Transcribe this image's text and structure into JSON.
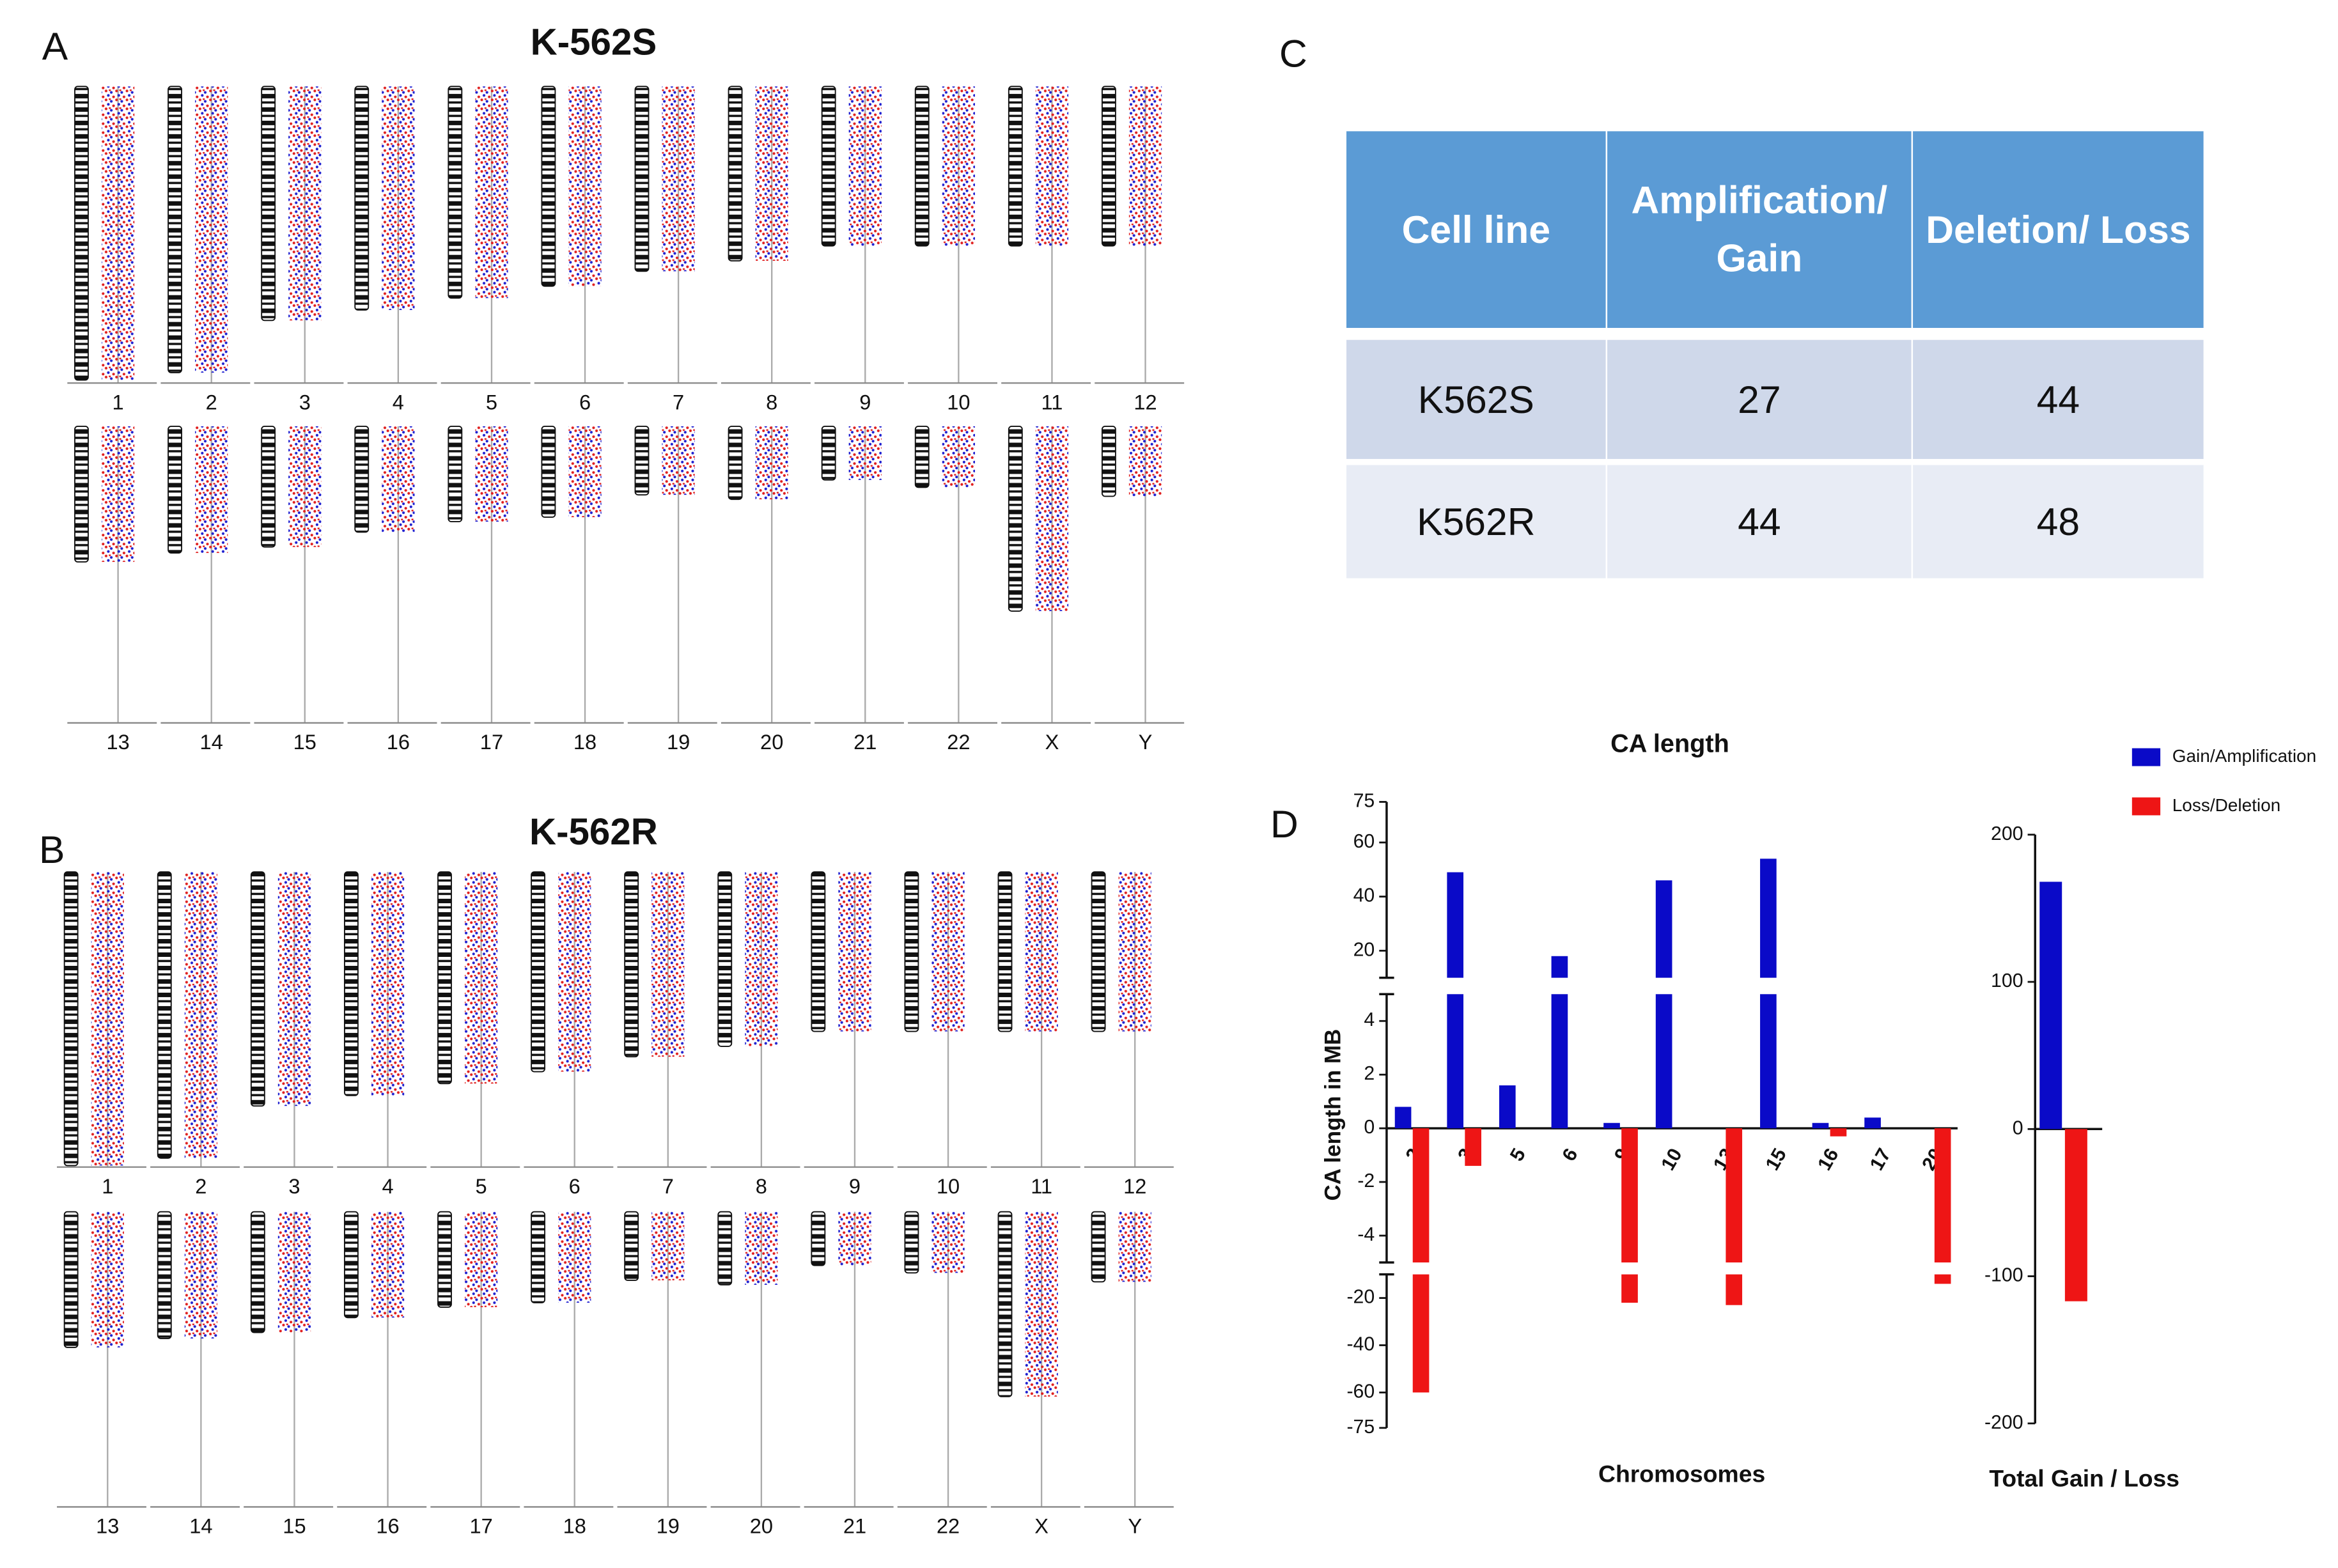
{
  "panel_letters": [
    "A",
    "B",
    "C",
    "D"
  ],
  "karyograms": [
    {
      "title": "K-562S",
      "rows": [
        [
          "1",
          "2",
          "3",
          "4",
          "5",
          "6",
          "7",
          "8",
          "9",
          "10",
          "11",
          "12"
        ],
        [
          "13",
          "14",
          "15",
          "16",
          "17",
          "18",
          "19",
          "20",
          "21",
          "22",
          "X",
          "Y"
        ]
      ]
    },
    {
      "title": "K-562R",
      "rows": [
        [
          "1",
          "2",
          "3",
          "4",
          "5",
          "6",
          "7",
          "8",
          "9",
          "10",
          "11",
          "12"
        ],
        [
          "13",
          "14",
          "15",
          "16",
          "17",
          "18",
          "19",
          "20",
          "21",
          "22",
          "X",
          "Y"
        ]
      ]
    }
  ],
  "table": {
    "header": [
      "Cell line",
      "Amplification/ Gain",
      "Deletion/ Loss"
    ],
    "rows": [
      [
        "K562S",
        27,
        44
      ],
      [
        "K562R",
        44,
        48
      ]
    ]
  },
  "chart_data": [
    {
      "type": "bar",
      "title": "CA length",
      "xlabel": "Chromosomes",
      "ylabel": "CA length in MB",
      "categories": [
        "2",
        "3",
        "5",
        "6",
        "9",
        "10",
        "13",
        "15",
        "16",
        "17",
        "20"
      ],
      "series": [
        {
          "name": "Gain/Amplification",
          "color": "#0a0ac8",
          "values": [
            0.8,
            49,
            1.6,
            18,
            0.2,
            46,
            0,
            54,
            0.2,
            0.4,
            0
          ]
        },
        {
          "name": "Loss/Deletion",
          "color": "#ee1515",
          "values": [
            -60,
            -1.4,
            0,
            0,
            -22,
            0,
            -23,
            0,
            -0.3,
            0,
            -14
          ]
        }
      ],
      "ylim": [
        -75,
        75
      ],
      "y_segments": [
        [
          -75,
          -10
        ],
        [
          -5,
          5
        ],
        [
          10,
          75
        ]
      ],
      "yticks": [
        -75,
        -60,
        -40,
        -20,
        -4,
        -2,
        0,
        2,
        4,
        20,
        40,
        60,
        75
      ],
      "legend": "upper right"
    },
    {
      "type": "bar",
      "xlabel": "Total Gain / Loss",
      "categories": [
        null
      ],
      "series": [
        {
          "color": "#0a0ac8",
          "values": [
            168
          ]
        },
        {
          "color": "#ee1515",
          "values": [
            -117
          ]
        }
      ],
      "ylim": [
        -200,
        200
      ],
      "yticks": [
        -200,
        -100,
        0,
        100,
        200
      ]
    }
  ]
}
